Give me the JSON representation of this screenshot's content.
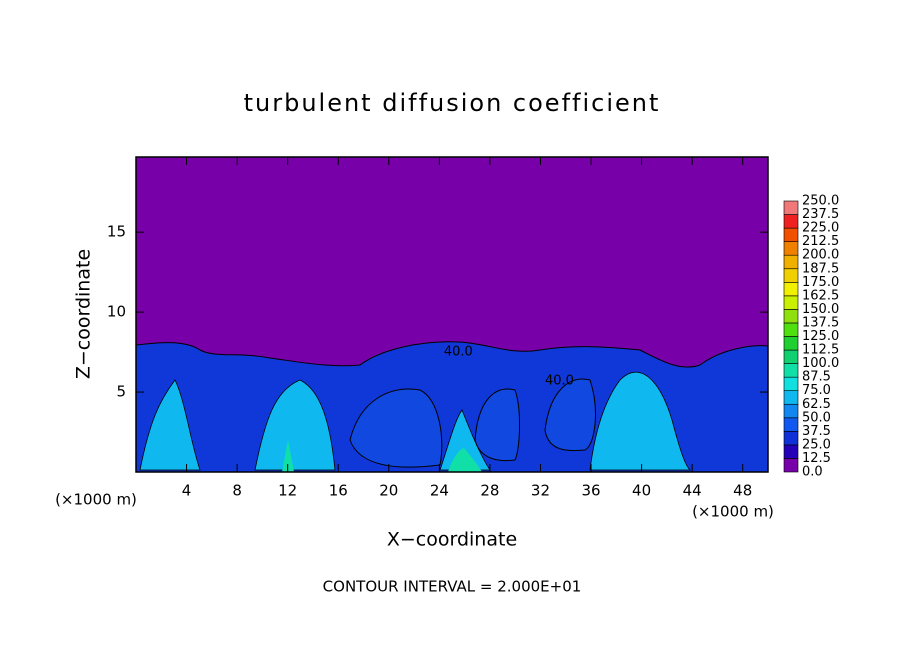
{
  "chart_data": {
    "type": "contour",
    "title": "turbulent diffusion coefficient",
    "x_label": "X−coordinate",
    "y_label": "Z−coordinate",
    "x_unit_left": "(×1000 m)",
    "x_unit_right": "(×1000 m)",
    "footer": "CONTOUR INTERVAL = 2.000E+01",
    "xlim": [
      0,
      50
    ],
    "xticks": [
      4,
      8,
      12,
      16,
      20,
      24,
      28,
      32,
      36,
      40,
      44,
      48
    ],
    "ylim": [
      0,
      19.7
    ],
    "yticks": [
      5,
      10,
      15
    ],
    "annotations": [
      {
        "text": "40.0",
        "x": 25.5,
        "y": 7.5
      },
      {
        "text": "40.0",
        "x": 33.5,
        "y": 5.7
      }
    ],
    "colorbar": {
      "levels": [
        {
          "value": 0,
          "label": "0.0"
        },
        {
          "value": 12.5,
          "label": "12.5"
        },
        {
          "value": 25,
          "label": "25.0"
        },
        {
          "value": 37.5,
          "label": "37.5"
        },
        {
          "value": 50,
          "label": "50.0"
        },
        {
          "value": 62.5,
          "label": "62.5"
        },
        {
          "value": 75,
          "label": "75.0"
        },
        {
          "value": 87.5,
          "label": "87.5"
        },
        {
          "value": 100,
          "label": "100.0"
        },
        {
          "value": 112.5,
          "label": "112.5"
        },
        {
          "value": 125,
          "label": "125.0"
        },
        {
          "value": 137.5,
          "label": "137.5"
        },
        {
          "value": 150,
          "label": "150.0"
        },
        {
          "value": 162.5,
          "label": "162.5"
        },
        {
          "value": 175,
          "label": "175.0"
        },
        {
          "value": 187.5,
          "label": "187.5"
        },
        {
          "value": 200,
          "label": "200.0"
        },
        {
          "value": 212.5,
          "label": "212.5"
        },
        {
          "value": 225,
          "label": "225.0"
        },
        {
          "value": 237.5,
          "label": "237.5"
        },
        {
          "value": 250,
          "label": "250.0"
        }
      ],
      "colors": [
        "#7800a8",
        "#2400b8",
        "#1030d8",
        "#1058f0",
        "#1088f0",
        "#10b8f0",
        "#10e0e0",
        "#10e0a8",
        "#10d070",
        "#20d030",
        "#50e010",
        "#90e010",
        "#c8f000",
        "#f0f000",
        "#f0d000",
        "#f0b000",
        "#f08000",
        "#f05000",
        "#f02020",
        "#f07878"
      ]
    }
  }
}
